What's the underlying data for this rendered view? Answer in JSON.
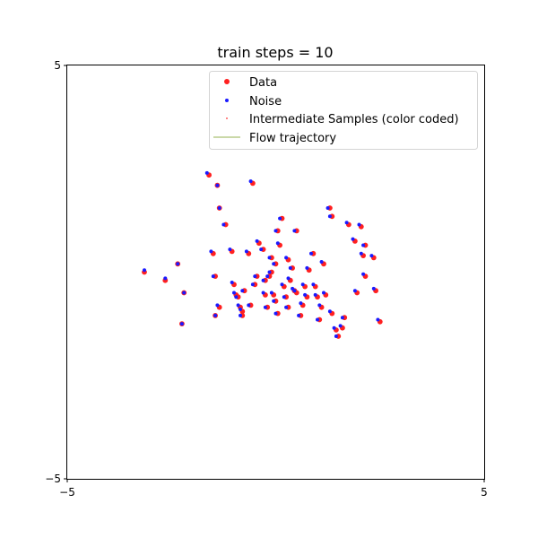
{
  "chart_data": {
    "type": "scatter",
    "title": "train steps = 10",
    "xlabel": "",
    "ylabel": "",
    "xlim": [
      -5,
      5
    ],
    "ylim": [
      -5,
      5
    ],
    "x_ticks": [
      -5,
      5
    ],
    "y_ticks": [
      -5,
      5
    ],
    "x_tick_labels": [
      "−5",
      "5"
    ],
    "y_tick_labels": [
      "−5",
      "5"
    ],
    "grid": false,
    "legend_position": "top-right",
    "colors": {
      "data": "#ff2020",
      "noise": "#1a1aff",
      "intermediate": "#ff3030",
      "trajectory": "#b8cc8c"
    },
    "legend": [
      {
        "key": "data",
        "label": "Data",
        "marker": "dot-large"
      },
      {
        "key": "noise",
        "label": "Noise",
        "marker": "dot-small"
      },
      {
        "key": "intermediate",
        "label": "Intermediate Samples (color coded)",
        "marker": "dot-tiny"
      },
      {
        "key": "trajectory",
        "label": "Flow trajectory",
        "marker": "line"
      }
    ],
    "series": [
      {
        "name": "Noise",
        "points": [
          [
            -3.15,
            0.05
          ],
          [
            -2.65,
            -0.15
          ],
          [
            -2.35,
            0.2
          ],
          [
            -2.2,
            -0.5
          ],
          [
            -2.25,
            -1.25
          ],
          [
            -1.65,
            2.4
          ],
          [
            -1.4,
            2.1
          ],
          [
            -1.55,
            0.5
          ],
          [
            -1.5,
            -0.1
          ],
          [
            -1.45,
            -1.05
          ],
          [
            -1.4,
            -0.8
          ],
          [
            -1.25,
            1.15
          ],
          [
            -1.35,
            1.55
          ],
          [
            -1.1,
            0.55
          ],
          [
            -1.05,
            -0.25
          ],
          [
            -1.0,
            -0.5
          ],
          [
            -0.95,
            -0.6
          ],
          [
            -0.9,
            -0.8
          ],
          [
            -0.85,
            -1.05
          ],
          [
            -0.85,
            -0.9
          ],
          [
            -0.8,
            -0.45
          ],
          [
            -0.7,
            0.5
          ],
          [
            -0.65,
            -0.8
          ],
          [
            -0.6,
            2.2
          ],
          [
            -0.55,
            -0.3
          ],
          [
            -0.5,
            -0.1
          ],
          [
            -0.45,
            0.75
          ],
          [
            -0.35,
            0.55
          ],
          [
            -0.3,
            -0.2
          ],
          [
            -0.3,
            -0.5
          ],
          [
            -0.25,
            -0.85
          ],
          [
            -0.2,
            -0.1
          ],
          [
            -0.15,
            0.35
          ],
          [
            -0.15,
            0.0
          ],
          [
            -0.1,
            -0.5
          ],
          [
            -0.05,
            -0.7
          ],
          [
            0.0,
            -1.0
          ],
          [
            -0.05,
            0.2
          ],
          [
            0.0,
            1.0
          ],
          [
            0.05,
            0.7
          ],
          [
            0.1,
            1.3
          ],
          [
            0.15,
            -0.3
          ],
          [
            0.2,
            -0.6
          ],
          [
            0.25,
            -0.85
          ],
          [
            0.25,
            0.35
          ],
          [
            0.3,
            -0.15
          ],
          [
            0.35,
            0.1
          ],
          [
            0.4,
            -0.4
          ],
          [
            0.45,
            1.0
          ],
          [
            0.45,
            -0.45
          ],
          [
            0.55,
            -1.05
          ],
          [
            0.6,
            -0.75
          ],
          [
            0.65,
            -0.3
          ],
          [
            0.7,
            -0.55
          ],
          [
            0.75,
            0.1
          ],
          [
            0.85,
            0.45
          ],
          [
            0.9,
            -0.3
          ],
          [
            0.95,
            -0.55
          ],
          [
            1.0,
            -1.15
          ],
          [
            1.05,
            -0.8
          ],
          [
            1.1,
            0.25
          ],
          [
            1.15,
            -0.5
          ],
          [
            1.25,
            1.55
          ],
          [
            1.3,
            1.35
          ],
          [
            1.3,
            -0.95
          ],
          [
            1.4,
            -1.35
          ],
          [
            1.45,
            -1.55
          ],
          [
            1.55,
            -1.3
          ],
          [
            1.6,
            -1.1
          ],
          [
            1.7,
            1.2
          ],
          [
            1.85,
            0.8
          ],
          [
            1.9,
            -0.45
          ],
          [
            2.0,
            1.15
          ],
          [
            2.05,
            0.45
          ],
          [
            2.1,
            0.65
          ],
          [
            2.1,
            -0.05
          ],
          [
            2.3,
            0.4
          ],
          [
            2.35,
            -0.4
          ],
          [
            2.45,
            -1.15
          ]
        ]
      },
      {
        "name": "Data",
        "points": [
          [
            -3.15,
            0.0
          ],
          [
            -2.65,
            -0.2
          ],
          [
            -2.35,
            0.2
          ],
          [
            -2.2,
            -0.5
          ],
          [
            -2.25,
            -1.25
          ],
          [
            -1.6,
            2.35
          ],
          [
            -1.4,
            2.1
          ],
          [
            -1.5,
            0.45
          ],
          [
            -1.45,
            -0.1
          ],
          [
            -1.45,
            -1.05
          ],
          [
            -1.35,
            -0.85
          ],
          [
            -1.2,
            1.15
          ],
          [
            -1.35,
            1.55
          ],
          [
            -1.05,
            0.5
          ],
          [
            -1.0,
            -0.3
          ],
          [
            -0.95,
            -0.55
          ],
          [
            -0.9,
            -0.6
          ],
          [
            -0.85,
            -0.85
          ],
          [
            -0.8,
            -1.05
          ],
          [
            -0.8,
            -0.95
          ],
          [
            -0.75,
            -0.45
          ],
          [
            -0.65,
            0.45
          ],
          [
            -0.6,
            -0.8
          ],
          [
            -0.55,
            2.15
          ],
          [
            -0.5,
            -0.3
          ],
          [
            -0.45,
            -0.1
          ],
          [
            -0.4,
            0.7
          ],
          [
            -0.3,
            0.55
          ],
          [
            -0.25,
            -0.2
          ],
          [
            -0.25,
            -0.55
          ],
          [
            -0.2,
            -0.85
          ],
          [
            -0.15,
            -0.1
          ],
          [
            -0.1,
            0.35
          ],
          [
            -0.1,
            0.0
          ],
          [
            -0.05,
            -0.55
          ],
          [
            0.0,
            -0.7
          ],
          [
            0.05,
            -1.0
          ],
          [
            0.0,
            0.2
          ],
          [
            0.05,
            1.0
          ],
          [
            0.1,
            0.65
          ],
          [
            0.15,
            1.3
          ],
          [
            0.2,
            -0.35
          ],
          [
            0.25,
            -0.6
          ],
          [
            0.3,
            -0.85
          ],
          [
            0.3,
            0.3
          ],
          [
            0.35,
            -0.2
          ],
          [
            0.4,
            0.1
          ],
          [
            0.45,
            -0.45
          ],
          [
            0.5,
            1.0
          ],
          [
            0.5,
            -0.5
          ],
          [
            0.6,
            -1.05
          ],
          [
            0.65,
            -0.8
          ],
          [
            0.7,
            -0.35
          ],
          [
            0.75,
            -0.6
          ],
          [
            0.8,
            0.05
          ],
          [
            0.9,
            0.45
          ],
          [
            0.95,
            -0.35
          ],
          [
            1.0,
            -0.6
          ],
          [
            1.05,
            -1.15
          ],
          [
            1.1,
            -0.85
          ],
          [
            1.15,
            0.2
          ],
          [
            1.2,
            -0.55
          ],
          [
            1.3,
            1.55
          ],
          [
            1.35,
            1.35
          ],
          [
            1.35,
            -1.0
          ],
          [
            1.45,
            -1.4
          ],
          [
            1.5,
            -1.55
          ],
          [
            1.6,
            -1.35
          ],
          [
            1.65,
            -1.1
          ],
          [
            1.75,
            1.15
          ],
          [
            1.9,
            0.75
          ],
          [
            1.95,
            -0.5
          ],
          [
            2.05,
            1.1
          ],
          [
            2.1,
            0.4
          ],
          [
            2.15,
            0.65
          ],
          [
            2.15,
            -0.1
          ],
          [
            2.35,
            0.35
          ],
          [
            2.4,
            -0.45
          ],
          [
            2.5,
            -1.2
          ]
        ]
      }
    ]
  }
}
